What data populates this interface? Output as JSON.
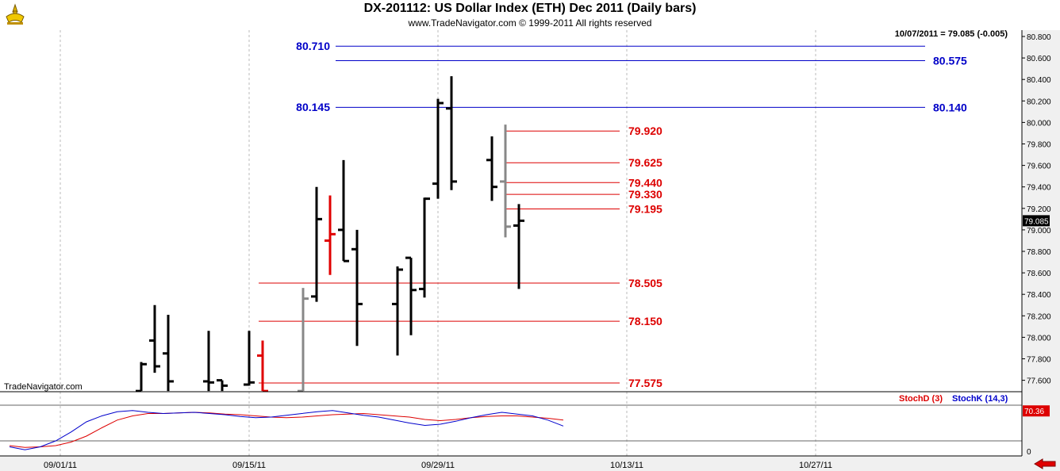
{
  "header": {
    "title": "DX-201112:  US Dollar Index (ETH) Dec 2011  (Daily bars)",
    "subtitle": "www.TradeNavigator.com © 1999-2011 All rights reserved",
    "last_quote": "10/07/2011 = 79.085 (-0.005)"
  },
  "watermark": "TradeNavigator.com",
  "colors": {
    "bar_normal": "#000000",
    "bar_red": "#e00000",
    "bar_gray": "#888888",
    "level_blue": "#0000c8",
    "level_red": "#dd0000",
    "stoch_d": "#dd0000",
    "stoch_k": "#0000cc"
  },
  "chart_data": [
    {
      "type": "ohlc",
      "title": "DX-201112:  US Dollar Index (ETH) Dec 2011  (Daily bars)",
      "ylim": [
        77.5,
        80.85
      ],
      "y_ticks": [
        "80.800",
        "80.600",
        "80.400",
        "80.200",
        "80.000",
        "79.800",
        "79.600",
        "79.400",
        "79.200",
        "79.000",
        "78.800",
        "78.600",
        "78.400",
        "78.200",
        "78.000",
        "77.800",
        "77.600"
      ],
      "x_ticks": [
        "09/01/11",
        "09/15/11",
        "09/29/11",
        "10/13/11",
        "10/27/11"
      ],
      "last_price_label": "79.085",
      "bars": [
        {
          "date": "09/07/11",
          "open": 77.5,
          "high": 77.77,
          "low": 77.5,
          "close": 77.75,
          "color": "black"
        },
        {
          "date": "09/08/11",
          "open": 77.97,
          "high": 78.3,
          "low": 77.67,
          "close": 77.73,
          "color": "black"
        },
        {
          "date": "09/09/11",
          "open": 77.85,
          "high": 78.21,
          "low": 77.5,
          "close": 77.59,
          "color": "black"
        },
        {
          "date": "09/12/11",
          "open": 77.59,
          "high": 78.06,
          "low": 77.5,
          "close": 77.58,
          "color": "black"
        },
        {
          "date": "09/13/11",
          "open": 77.6,
          "high": 77.6,
          "low": 77.5,
          "close": 77.55,
          "color": "black"
        },
        {
          "date": "09/15/11",
          "open": 77.56,
          "high": 78.06,
          "low": 77.55,
          "close": 77.58,
          "color": "black"
        },
        {
          "date": "09/16/11",
          "open": 77.83,
          "high": 77.97,
          "low": 77.5,
          "close": 77.5,
          "color": "red"
        },
        {
          "date": "09/19/11",
          "open": 77.5,
          "high": 78.46,
          "low": 77.5,
          "close": 78.36,
          "color": "gray"
        },
        {
          "date": "09/20/11",
          "open": 78.38,
          "high": 79.4,
          "low": 78.33,
          "close": 79.1,
          "color": "black"
        },
        {
          "date": "09/21/11",
          "open": 78.9,
          "high": 79.32,
          "low": 78.58,
          "close": 78.96,
          "color": "red"
        },
        {
          "date": "09/22/11",
          "open": 79.0,
          "high": 79.65,
          "low": 78.71,
          "close": 78.71,
          "color": "black"
        },
        {
          "date": "09/23/11",
          "open": 78.82,
          "high": 79.0,
          "low": 77.92,
          "close": 78.31,
          "color": "black"
        },
        {
          "date": "09/26/11",
          "open": 78.31,
          "high": 78.66,
          "low": 77.83,
          "close": 78.63,
          "color": "black"
        },
        {
          "date": "09/27/11",
          "open": 78.74,
          "high": 78.74,
          "low": 78.02,
          "close": 78.44,
          "color": "black"
        },
        {
          "date": "09/28/11",
          "open": 78.45,
          "high": 79.3,
          "low": 78.37,
          "close": 79.29,
          "color": "black"
        },
        {
          "date": "09/29/11",
          "open": 79.43,
          "high": 80.22,
          "low": 79.29,
          "close": 80.18,
          "color": "black"
        },
        {
          "date": "09/30/11",
          "open": 80.13,
          "high": 80.43,
          "low": 79.37,
          "close": 79.45,
          "color": "black"
        },
        {
          "date": "10/03/11",
          "open": 79.65,
          "high": 79.87,
          "low": 79.27,
          "close": 79.4,
          "color": "black"
        },
        {
          "date": "10/04/11",
          "open": 79.45,
          "high": 79.98,
          "low": 78.93,
          "close": 79.03,
          "color": "gray"
        },
        {
          "date": "10/05/11",
          "open": 79.04,
          "high": 79.24,
          "low": 78.45,
          "close": 79.085,
          "color": "black"
        }
      ],
      "levels": [
        {
          "value": 80.71,
          "label": "80.710",
          "color": "blue",
          "label_side": "left"
        },
        {
          "value": 80.575,
          "label": "80.575",
          "color": "blue",
          "label_side": "right"
        },
        {
          "value": 80.145,
          "label": "80.145",
          "color": "blue",
          "label_side": "left"
        },
        {
          "value": 80.14,
          "label": "80.140",
          "color": "blue",
          "label_side": "right"
        },
        {
          "value": 79.92,
          "label": "79.920",
          "color": "red",
          "label_side": "right"
        },
        {
          "value": 79.625,
          "label": "79.625",
          "color": "red",
          "label_side": "right"
        },
        {
          "value": 79.44,
          "label": "79.440",
          "color": "red",
          "label_side": "right"
        },
        {
          "value": 79.33,
          "label": "79.330",
          "color": "red",
          "label_side": "right"
        },
        {
          "value": 79.195,
          "label": "79.195",
          "color": "red",
          "label_side": "right"
        },
        {
          "value": 78.505,
          "label": "78.505",
          "color": "red",
          "label_side": "right"
        },
        {
          "value": 78.15,
          "label": "78.150",
          "color": "red",
          "label_side": "right"
        },
        {
          "value": 77.575,
          "label": "77.575",
          "color": "red",
          "label_side": "right"
        }
      ]
    },
    {
      "type": "line",
      "title": "StochD (3)  StochK (14,3)",
      "ylim": [
        0,
        100
      ],
      "y_ticks": [
        "0"
      ],
      "last_value_label": "70.36",
      "series": [
        {
          "name": "StochD (3)",
          "color": "red",
          "values": [
            12,
            9,
            10,
            12,
            18,
            28,
            42,
            55,
            62,
            66,
            66,
            67,
            68,
            67,
            65,
            64,
            62,
            60,
            59,
            60,
            62,
            64,
            65,
            66,
            64,
            62,
            60,
            56,
            54,
            56,
            59,
            61,
            62,
            62,
            60,
            58,
            55
          ]
        },
        {
          "name": "StochK (14,3)",
          "color": "blue",
          "values": [
            10,
            5,
            10,
            20,
            35,
            52,
            62,
            69,
            71,
            68,
            66,
            67,
            68,
            66,
            64,
            61,
            59,
            60,
            63,
            66,
            69,
            71,
            67,
            63,
            60,
            55,
            50,
            46,
            48,
            53,
            59,
            64,
            68,
            65,
            62,
            55,
            45
          ]
        }
      ]
    }
  ]
}
